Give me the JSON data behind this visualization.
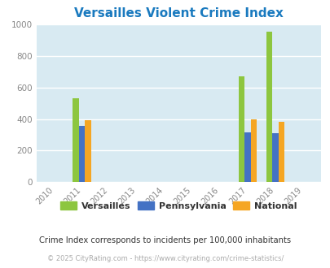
{
  "title": "Versailles Violent Crime Index",
  "title_color": "#1a7abf",
  "years": [
    2010,
    2011,
    2012,
    2013,
    2014,
    2015,
    2016,
    2017,
    2018,
    2019
  ],
  "versailles": [
    0,
    530,
    0,
    0,
    0,
    0,
    0,
    670,
    950,
    0
  ],
  "pennsylvania": [
    0,
    355,
    0,
    0,
    0,
    0,
    0,
    315,
    310,
    0
  ],
  "national": [
    0,
    390,
    0,
    0,
    0,
    0,
    0,
    398,
    383,
    0
  ],
  "versailles_color": "#8dc63f",
  "pennsylvania_color": "#4472c4",
  "national_color": "#f5a623",
  "ylim": [
    0,
    1000
  ],
  "yticks": [
    0,
    200,
    400,
    600,
    800,
    1000
  ],
  "plot_bg_color": "#d8eaf2",
  "grid_color": "#ffffff",
  "bar_width": 0.22,
  "legend_labels": [
    "Versailles",
    "Pennsylvania",
    "National"
  ],
  "footnote1": "Crime Index corresponds to incidents per 100,000 inhabitants",
  "footnote1_color": "#333333",
  "footnote2": "© 2025 CityRating.com - https://www.cityrating.com/crime-statistics/",
  "footnote2_color": "#aaaaaa",
  "tick_color": "#888888"
}
